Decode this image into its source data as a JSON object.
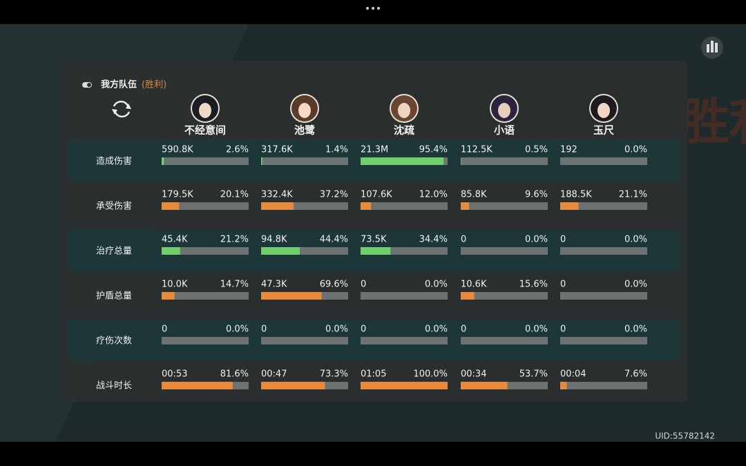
{
  "header": {
    "title": "我方队伍",
    "status": "(胜利)"
  },
  "watermark": "战斗胜利",
  "uid": "UID:55782142",
  "characters": [
    "不经意间",
    "池鹭",
    "沈疏",
    "小语",
    "玉尺"
  ],
  "rows": [
    {
      "label": "造成伤害",
      "color": "#6fcf6a",
      "cells": [
        {
          "value": "590.8K",
          "percent": 2.6,
          "percent_label": "2.6%"
        },
        {
          "value": "317.6K",
          "percent": 1.4,
          "percent_label": "1.4%"
        },
        {
          "value": "21.3M",
          "percent": 95.4,
          "percent_label": "95.4%"
        },
        {
          "value": "112.5K",
          "percent": 0.5,
          "percent_label": "0.5%"
        },
        {
          "value": "192",
          "percent": 0.0,
          "percent_label": "0.0%"
        }
      ]
    },
    {
      "label": "承受伤害",
      "color": "#e88a3c",
      "cells": [
        {
          "value": "179.5K",
          "percent": 20.1,
          "percent_label": "20.1%"
        },
        {
          "value": "332.4K",
          "percent": 37.2,
          "percent_label": "37.2%"
        },
        {
          "value": "107.6K",
          "percent": 12.0,
          "percent_label": "12.0%"
        },
        {
          "value": "85.8K",
          "percent": 9.6,
          "percent_label": "9.6%"
        },
        {
          "value": "188.5K",
          "percent": 21.1,
          "percent_label": "21.1%"
        }
      ]
    },
    {
      "label": "治疗总量",
      "color": "#6fcf6a",
      "cells": [
        {
          "value": "45.4K",
          "percent": 21.2,
          "percent_label": "21.2%"
        },
        {
          "value": "94.8K",
          "percent": 44.4,
          "percent_label": "44.4%"
        },
        {
          "value": "73.5K",
          "percent": 34.4,
          "percent_label": "34.4%"
        },
        {
          "value": "0",
          "percent": 0.0,
          "percent_label": "0.0%"
        },
        {
          "value": "0",
          "percent": 0.0,
          "percent_label": "0.0%"
        }
      ]
    },
    {
      "label": "护盾总量",
      "color": "#e88a3c",
      "cells": [
        {
          "value": "10.0K",
          "percent": 14.7,
          "percent_label": "14.7%"
        },
        {
          "value": "47.3K",
          "percent": 69.6,
          "percent_label": "69.6%"
        },
        {
          "value": "0",
          "percent": 0.0,
          "percent_label": "0.0%"
        },
        {
          "value": "10.6K",
          "percent": 15.6,
          "percent_label": "15.6%"
        },
        {
          "value": "0",
          "percent": 0.0,
          "percent_label": "0.0%"
        }
      ]
    },
    {
      "label": "疗伤次数",
      "color": "#e88a3c",
      "cells": [
        {
          "value": "0",
          "percent": 0.0,
          "percent_label": "0.0%"
        },
        {
          "value": "0",
          "percent": 0.0,
          "percent_label": "0.0%"
        },
        {
          "value": "0",
          "percent": 0.0,
          "percent_label": "0.0%"
        },
        {
          "value": "0",
          "percent": 0.0,
          "percent_label": "0.0%"
        },
        {
          "value": "0",
          "percent": 0.0,
          "percent_label": "0.0%"
        }
      ]
    },
    {
      "label": "战斗时长",
      "color": "#e88a3c",
      "cells": [
        {
          "value": "00:53",
          "percent": 81.6,
          "percent_label": "81.6%"
        },
        {
          "value": "00:47",
          "percent": 73.3,
          "percent_label": "73.3%"
        },
        {
          "value": "01:05",
          "percent": 100.0,
          "percent_label": "100.0%"
        },
        {
          "value": "00:34",
          "percent": 53.7,
          "percent_label": "53.7%"
        },
        {
          "value": "00:04",
          "percent": 7.6,
          "percent_label": "7.6%"
        }
      ]
    }
  ]
}
